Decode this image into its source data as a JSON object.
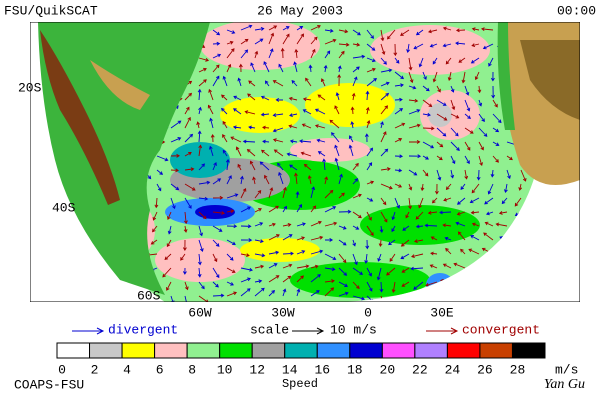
{
  "header": {
    "title": "FSU/QuikSCAT",
    "date": "26 May 2003",
    "time": "00:00"
  },
  "map": {
    "lat_labels": [
      "20S",
      "40S",
      "60S"
    ],
    "lon_labels": [
      "60W",
      "30W",
      "0",
      "30E"
    ]
  },
  "legend": {
    "divergent": "divergent",
    "scale": "scale",
    "scale_value": "10 m/s",
    "convergent": "convergent"
  },
  "colorbar": {
    "labels": [
      "0",
      "2",
      "4",
      "6",
      "8",
      "10",
      "12",
      "14",
      "16",
      "18",
      "20",
      "22",
      "24",
      "26",
      "28"
    ],
    "colors": [
      "#ffffff",
      "#c8c8c8",
      "#ffff00",
      "#ffc0c0",
      "#90f090",
      "#00e000",
      "#a0a0a0",
      "#00b0b0",
      "#3090ff",
      "#0000d0",
      "#ff50ff",
      "#b080ff",
      "#ff0000",
      "#c84000",
      "#000000"
    ],
    "unit": "m/s",
    "title": "Speed"
  },
  "footer": {
    "source": "COAPS-FSU",
    "author": "Yan Gu"
  }
}
